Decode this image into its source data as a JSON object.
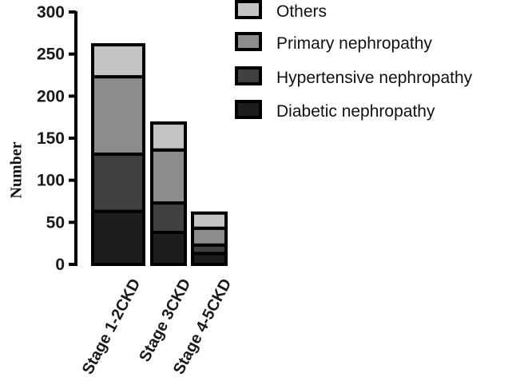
{
  "chart_data": {
    "type": "bar",
    "stacked": true,
    "categories": [
      "Stage 1-2CKD",
      "Stage 3CKD",
      "Stage 4-5CKD"
    ],
    "series": [
      {
        "name": "Diabetic nephropathy",
        "values": [
          63,
          38,
          13
        ],
        "color": "#1c1c1c"
      },
      {
        "name": "Hypertensive nephropathy",
        "values": [
          68,
          35,
          10
        ],
        "color": "#404040"
      },
      {
        "name": "Primary nephropathy",
        "values": [
          92,
          63,
          20
        ],
        "color": "#8c8c8c"
      },
      {
        "name": "Others",
        "values": [
          38,
          32,
          18
        ],
        "color": "#c4c4c4"
      }
    ],
    "xlabel": "",
    "ylabel": "Number",
    "ylim": [
      0,
      300
    ],
    "yticks": [
      0,
      50,
      100,
      150,
      200,
      250,
      300
    ],
    "legend_order": [
      "Others",
      "Primary nephropathy",
      "Hypertensive nephropathy",
      "Diabetic nephropathy"
    ],
    "legend_position": "top-right",
    "grid": false
  }
}
